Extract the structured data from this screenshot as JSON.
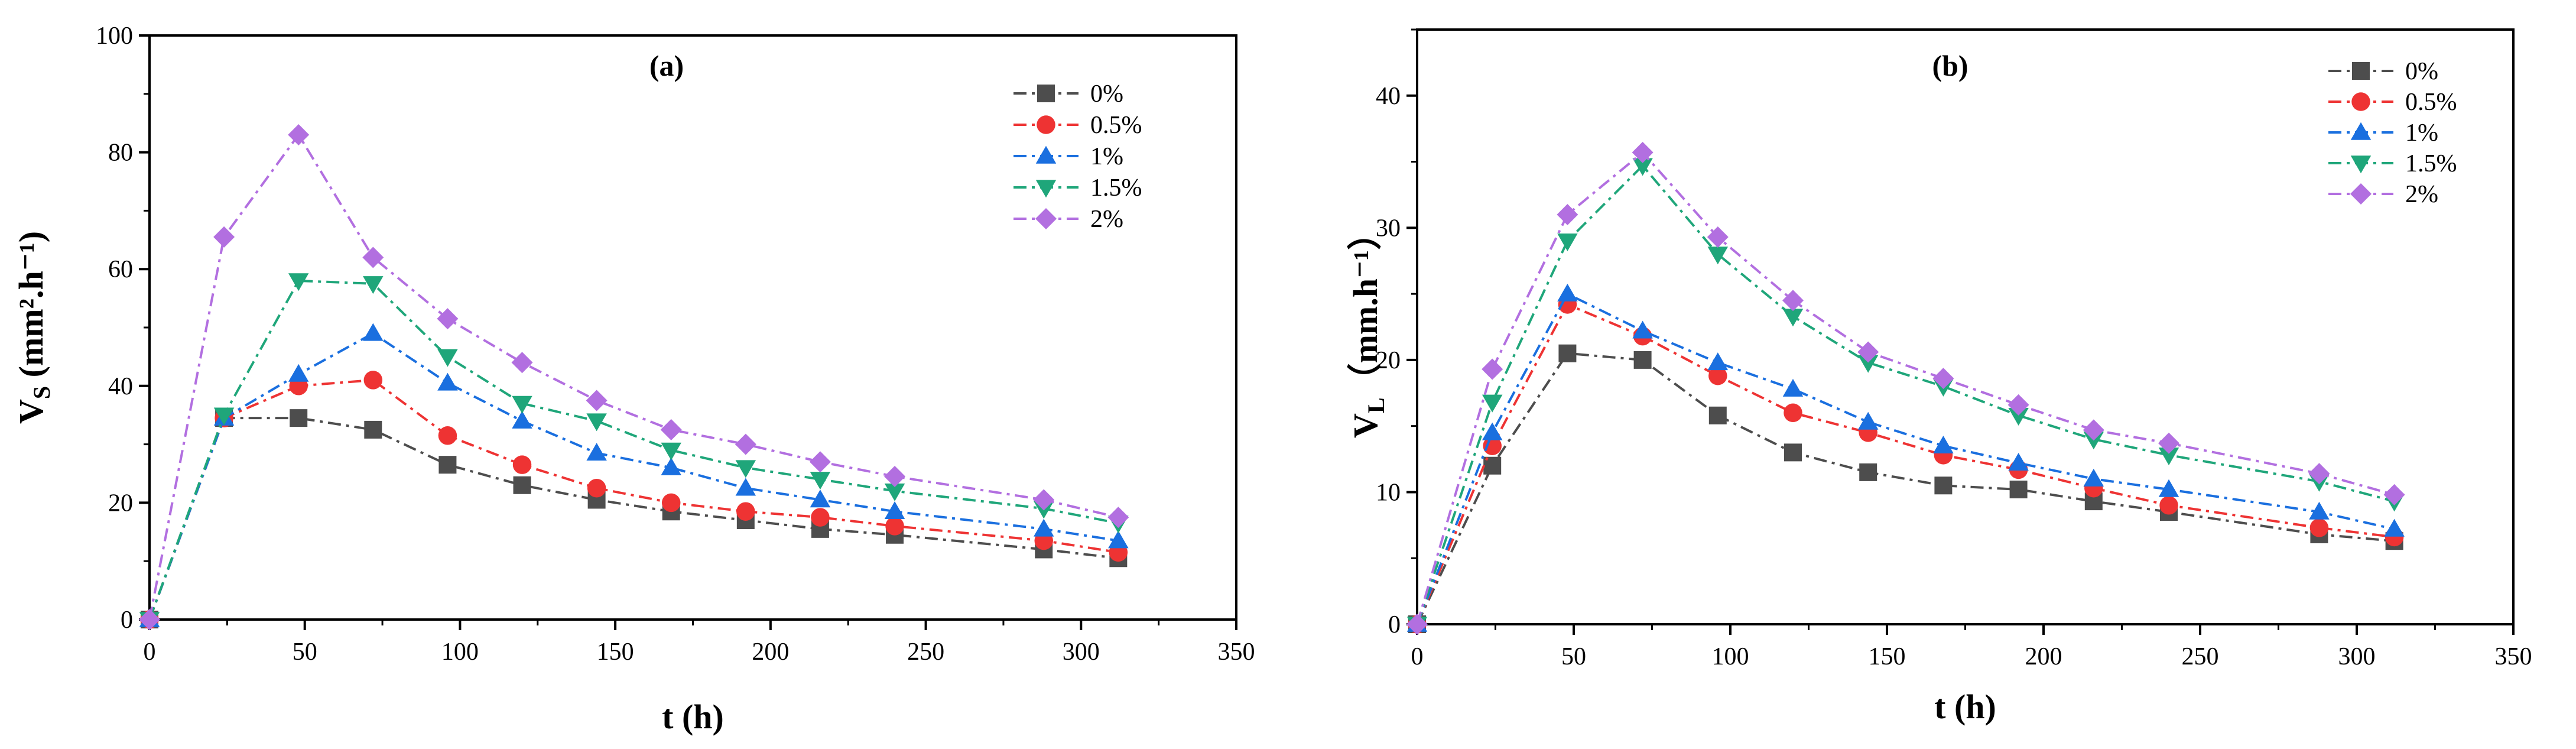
{
  "series_styles": [
    {
      "name": "0%",
      "color": "#4d4d4d",
      "marker": "square"
    },
    {
      "name": "0.5%",
      "color": "#ee3333",
      "marker": "circle"
    },
    {
      "name": "1%",
      "color": "#1a6fdf",
      "marker": "triangle-up"
    },
    {
      "name": "1.5%",
      "color": "#1fa67a",
      "marker": "triangle-down"
    },
    {
      "name": "2%",
      "color": "#b26fe0",
      "marker": "diamond"
    }
  ],
  "chart_data": [
    {
      "type": "line",
      "panel_label": "(a)",
      "xlabel": "t  (h)",
      "ylabel_main": "V",
      "ylabel_sub": "S",
      "ylabel_rest": " (mm².h⁻¹)",
      "xlim": [
        0,
        350
      ],
      "ylim": [
        0,
        100
      ],
      "xticks": [
        0,
        50,
        100,
        150,
        200,
        250,
        300,
        350
      ],
      "yticks": [
        0,
        20,
        40,
        60,
        80,
        100
      ],
      "legend_position": "top-right",
      "x": [
        0,
        24,
        48,
        72,
        96,
        120,
        144,
        168,
        192,
        216,
        240,
        288,
        312
      ],
      "series": [
        {
          "name": "0%",
          "values": [
            0,
            34.5,
            34.5,
            32.5,
            26.5,
            23,
            20.5,
            18.5,
            17,
            15.5,
            14.5,
            12,
            10.5
          ]
        },
        {
          "name": "0.5%",
          "values": [
            0,
            34.5,
            40,
            41,
            31.5,
            26.5,
            22.5,
            20,
            18.5,
            17.5,
            16,
            13.5,
            11.5
          ]
        },
        {
          "name": "1%",
          "values": [
            0,
            34.5,
            42,
            49,
            40.5,
            34,
            28.5,
            26,
            22.5,
            20.5,
            18.5,
            15.5,
            13.5
          ]
        },
        {
          "name": "1.5%",
          "values": [
            0,
            35,
            58,
            57.5,
            45,
            37,
            34,
            29,
            26,
            24,
            22,
            19,
            16.5
          ]
        },
        {
          "name": "2%",
          "values": [
            0,
            65.5,
            83,
            62,
            51.5,
            44,
            37.5,
            32.5,
            30,
            27,
            24.5,
            20.5,
            17.5
          ]
        }
      ]
    },
    {
      "type": "line",
      "panel_label": "(b)",
      "xlabel": "t (h)",
      "ylabel_main": "V",
      "ylabel_sub": "L",
      "ylabel_rest": "（mm.h⁻¹）",
      "xlim": [
        0,
        350
      ],
      "ylim": [
        0,
        45
      ],
      "xticks": [
        0,
        50,
        100,
        150,
        200,
        250,
        300,
        350
      ],
      "yticks": [
        0,
        10,
        20,
        30,
        40
      ],
      "legend_position": "top-right",
      "x": [
        0,
        24,
        48,
        72,
        96,
        120,
        144,
        168,
        192,
        216,
        240,
        288,
        312
      ],
      "series": [
        {
          "name": "0%",
          "values": [
            0,
            12,
            20.5,
            20,
            15.8,
            13,
            11.5,
            10.5,
            10.2,
            9.3,
            8.5,
            6.8,
            6.3
          ]
        },
        {
          "name": "0.5%",
          "values": [
            0,
            13.5,
            24.2,
            21.8,
            18.8,
            16,
            14.5,
            12.8,
            11.7,
            10.3,
            9,
            7.3,
            6.6
          ]
        },
        {
          "name": "1%",
          "values": [
            0,
            14.5,
            25,
            22.2,
            19.8,
            17.8,
            15.3,
            13.5,
            12.2,
            11,
            10.2,
            8.5,
            7.2
          ]
        },
        {
          "name": "1.5%",
          "values": [
            0,
            16.8,
            29,
            34.7,
            28,
            23.3,
            19.8,
            18,
            15.8,
            14,
            12.8,
            10.8,
            9.3
          ]
        },
        {
          "name": "2%",
          "values": [
            0,
            19.3,
            31,
            35.7,
            29.3,
            24.5,
            20.6,
            18.6,
            16.6,
            14.7,
            13.7,
            11.4,
            9.8
          ]
        }
      ]
    }
  ]
}
